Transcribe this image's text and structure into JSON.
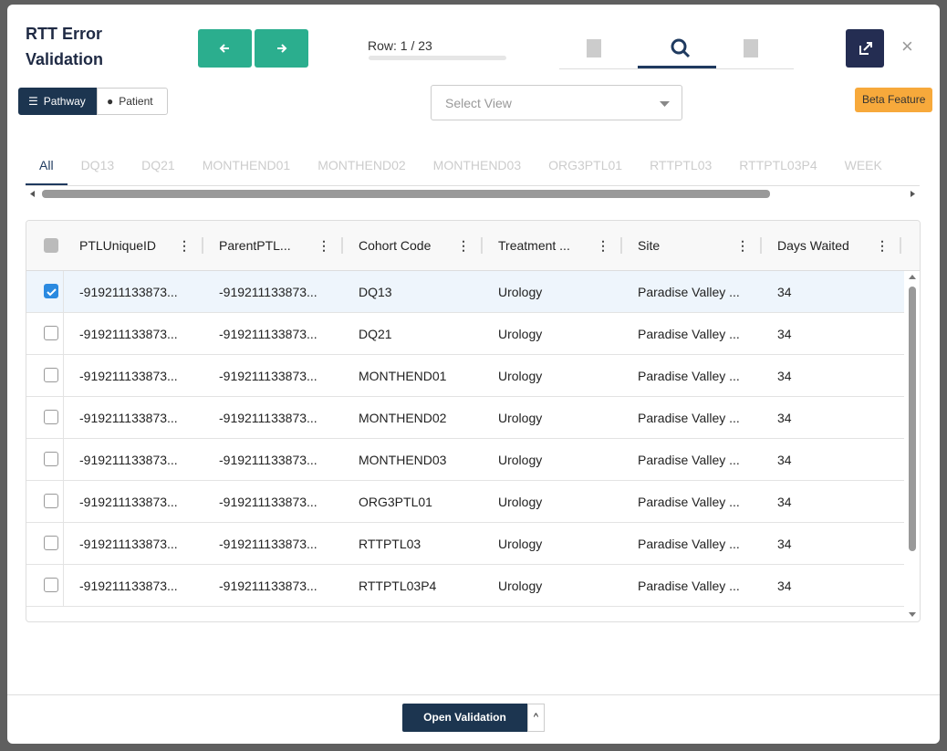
{
  "header": {
    "title": "RTT Error Validation",
    "row_indicator": "Row: 1 / 23"
  },
  "toggles": [
    "Pathway",
    "Patient"
  ],
  "select_placeholder": "Select View",
  "beta_badge": "Beta Feature",
  "tabs": [
    "All",
    "DQ13",
    "DQ21",
    "MONTHEND01",
    "MONTHEND02",
    "MONTHEND03",
    "ORG3PTL01",
    "RTTPTL03",
    "RTTPTL03P4",
    "WEEK"
  ],
  "table": {
    "columns": [
      "PTLUniqueID",
      "ParentPTL...",
      "Cohort Code",
      "Treatment ...",
      "Site",
      "Days Waited"
    ],
    "rows": [
      [
        "-919211133873...",
        "-919211133873...",
        "DQ13",
        "Urology",
        "Paradise Valley ...",
        34
      ],
      [
        "-919211133873...",
        "-919211133873...",
        "DQ21",
        "Urology",
        "Paradise Valley ...",
        34
      ],
      [
        "-919211133873...",
        "-919211133873...",
        "MONTHEND01",
        "Urology",
        "Paradise Valley ...",
        34
      ],
      [
        "-919211133873...",
        "-919211133873...",
        "MONTHEND02",
        "Urology",
        "Paradise Valley ...",
        34
      ],
      [
        "-919211133873...",
        "-919211133873...",
        "MONTHEND03",
        "Urology",
        "Paradise Valley ...",
        34
      ],
      [
        "-919211133873...",
        "-919211133873...",
        "ORG3PTL01",
        "Urology",
        "Paradise Valley ...",
        34
      ],
      [
        "-919211133873...",
        "-919211133873...",
        "RTTPTL03",
        "Urology",
        "Paradise Valley ...",
        34
      ],
      [
        "-919211133873...",
        "-919211133873...",
        "RTTPTL03P4",
        "Urology",
        "Paradise Valley ...",
        34
      ]
    ]
  },
  "footer": {
    "button": "Open Validation"
  }
}
